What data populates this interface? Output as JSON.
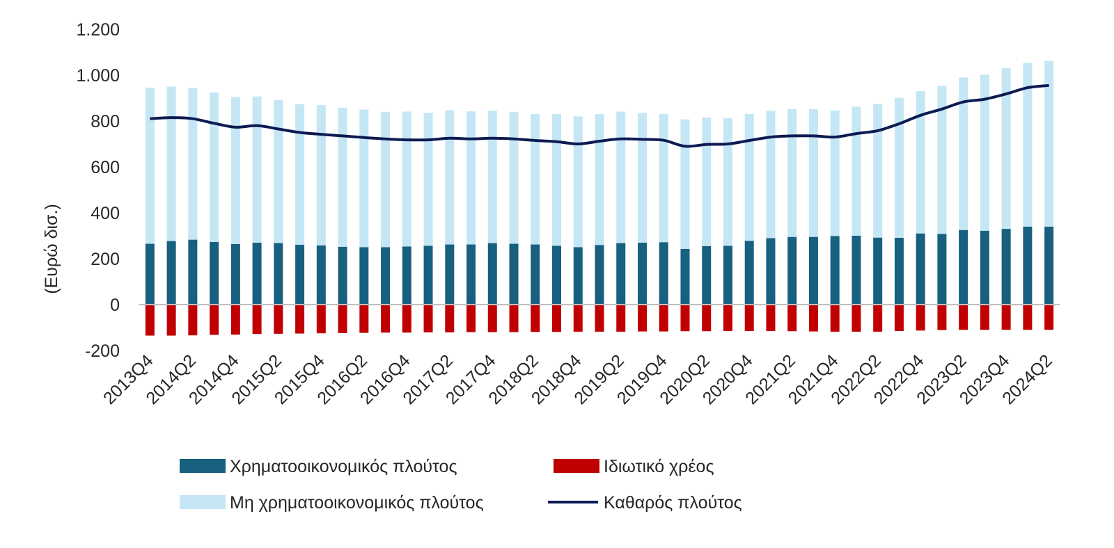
{
  "chart_data": {
    "type": "bar",
    "stacked": true,
    "title": "",
    "xlabel": "",
    "ylabel": "(Ευρώ δισ.)",
    "ylim": [
      -200,
      1200
    ],
    "yticks": [
      -200,
      0,
      200,
      400,
      600,
      800,
      1000,
      1200
    ],
    "ytick_labels": [
      "-200",
      "0",
      "200",
      "400",
      "600",
      "800",
      "1.000",
      "1.200"
    ],
    "grid": false,
    "legend_position": "bottom",
    "categories": [
      "2013Q4",
      "2014Q1",
      "2014Q2",
      "2014Q3",
      "2014Q4",
      "2015Q1",
      "2015Q2",
      "2015Q3",
      "2015Q4",
      "2016Q1",
      "2016Q2",
      "2016Q3",
      "2016Q4",
      "2017Q1",
      "2017Q2",
      "2017Q3",
      "2017Q4",
      "2018Q1",
      "2018Q2",
      "2018Q3",
      "2018Q4",
      "2019Q1",
      "2019Q2",
      "2019Q3",
      "2019Q4",
      "2020Q1",
      "2020Q2",
      "2020Q3",
      "2020Q4",
      "2021Q1",
      "2021Q2",
      "2021Q3",
      "2021Q4",
      "2022Q1",
      "2022Q2",
      "2022Q3",
      "2022Q4",
      "2023Q1",
      "2023Q2",
      "2023Q3",
      "2023Q4",
      "2024Q1",
      "2024Q2"
    ],
    "xtick_labels": [
      "2013Q4",
      "",
      "2014Q2",
      "",
      "2014Q4",
      "",
      "2015Q2",
      "",
      "2015Q4",
      "",
      "2016Q2",
      "",
      "2016Q4",
      "",
      "2017Q2",
      "",
      "2017Q4",
      "",
      "2018Q2",
      "",
      "2018Q4",
      "",
      "2019Q2",
      "",
      "2019Q4",
      "",
      "2020Q2",
      "",
      "2020Q4",
      "",
      "2021Q2",
      "",
      "2021Q4",
      "",
      "2022Q2",
      "",
      "2022Q4",
      "",
      "2023Q2",
      "",
      "2023Q4",
      "",
      "2024Q2"
    ],
    "series": [
      {
        "name": "Χρηματοοικονομικός πλούτος",
        "type": "bar",
        "color": "#17607f",
        "values": [
          265,
          277,
          283,
          273,
          264,
          270,
          268,
          261,
          258,
          252,
          250,
          250,
          253,
          256,
          262,
          262,
          268,
          265,
          262,
          256,
          250,
          260,
          268,
          270,
          272,
          243,
          255,
          256,
          278,
          290,
          295,
          295,
          299,
          300,
          292,
          291,
          310,
          308,
          325,
          322,
          330,
          340,
          340
        ]
      },
      {
        "name": "Μη χρηματοοικονομικός πλούτος",
        "type": "bar",
        "color": "#c5e6f4",
        "values": [
          680,
          673,
          661,
          651,
          641,
          637,
          624,
          612,
          611,
          606,
          600,
          590,
          588,
          580,
          585,
          580,
          577,
          575,
          568,
          574,
          570,
          570,
          573,
          566,
          558,
          564,
          560,
          556,
          553,
          555,
          557,
          557,
          547,
          563,
          582,
          610,
          620,
          645,
          665,
          680,
          700,
          713,
          722
        ]
      },
      {
        "name": "Ιδιωτικό χρέος",
        "type": "bar",
        "color": "#c00000",
        "values": [
          -135,
          -135,
          -134,
          -132,
          -131,
          -128,
          -127,
          -126,
          -125,
          -124,
          -123,
          -122,
          -122,
          -121,
          -121,
          -120,
          -120,
          -120,
          -119,
          -119,
          -118,
          -118,
          -118,
          -117,
          -117,
          -116,
          -116,
          -115,
          -115,
          -115,
          -116,
          -117,
          -118,
          -118,
          -118,
          -115,
          -113,
          -111,
          -110,
          -110,
          -110,
          -110,
          -110
        ]
      },
      {
        "name": "Καθαρός πλούτος",
        "type": "line",
        "color": "#0d1b52",
        "values": [
          810,
          815,
          810,
          790,
          773,
          780,
          765,
          750,
          742,
          735,
          728,
          722,
          718,
          718,
          725,
          722,
          725,
          722,
          715,
          710,
          700,
          712,
          722,
          720,
          716,
          690,
          698,
          700,
          715,
          730,
          735,
          735,
          730,
          745,
          758,
          788,
          825,
          852,
          883,
          895,
          918,
          945,
          955
        ]
      }
    ]
  }
}
